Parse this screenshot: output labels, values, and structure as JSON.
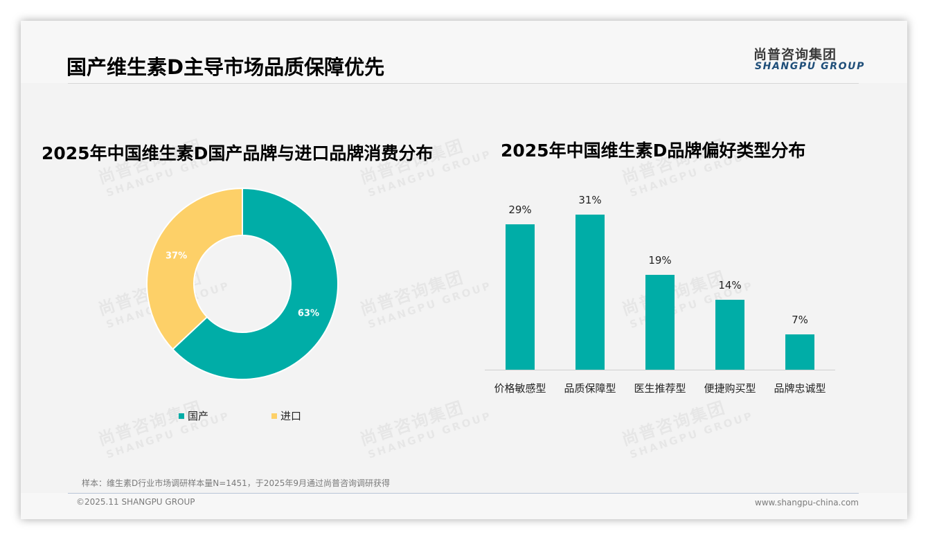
{
  "header": {
    "title": "国产维生素D主导市场品质保障优先",
    "logo_cn": "尚普咨询集团",
    "logo_en": "SHANGPU GROUP"
  },
  "watermark": {
    "cn": "尚普咨询集团",
    "en": "SHANGPU GROUP"
  },
  "colors": {
    "teal": "#00ADA7",
    "yellow": "#FDD068",
    "title": "#000000",
    "logo_blue": "#1F4E79"
  },
  "chart_data": [
    {
      "type": "pie",
      "subtype": "donut",
      "title": "2025年中国维生素D国产品牌与进口品牌消费分布",
      "categories": [
        "国产",
        "进口"
      ],
      "values": [
        63,
        37
      ],
      "labels": [
        "63%",
        "37%"
      ],
      "colors": [
        "#00ADA7",
        "#FDD068"
      ],
      "legend_position": "bottom"
    },
    {
      "type": "bar",
      "title": "2025年中国维生素D品牌偏好类型分布",
      "categories": [
        "价格敏感型",
        "品质保障型",
        "医生推荐型",
        "便捷购买型",
        "品牌忠诚型"
      ],
      "values": [
        29,
        31,
        19,
        14,
        7
      ],
      "labels": [
        "29%",
        "31%",
        "19%",
        "14%",
        "7%"
      ],
      "unit": "%",
      "xlabel": "",
      "ylabel": "",
      "grid": false,
      "color": "#00ADA7"
    }
  ],
  "legend": {
    "items": [
      {
        "label": "国产"
      },
      {
        "label": "进口"
      }
    ]
  },
  "footer": {
    "sample_note": "样本：维生素D行业市场调研样本量N=1451，于2025年9月通过尚普咨询调研获得",
    "copyright": "©2025.11 SHANGPU GROUP",
    "website": "www.shangpu-china.com"
  }
}
